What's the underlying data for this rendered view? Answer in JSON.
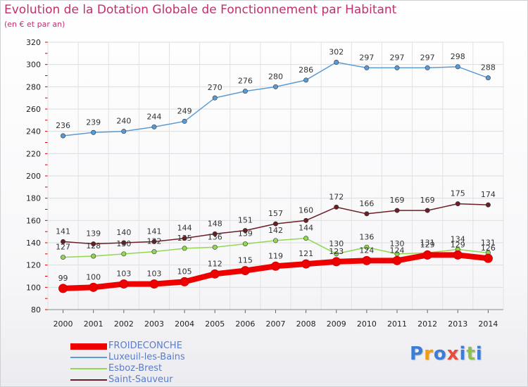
{
  "title": "Evolution de la Dotation Globale de Fonctionnement par Habitant",
  "subtitle": "(en € et par an)",
  "logo_text": "Proxiti",
  "chart_data": {
    "type": "line",
    "title": "Evolution de la Dotation Globale de Fonctionnement par Habitant",
    "subtitle": "(en € et par an)",
    "x": [
      "2000",
      "2001",
      "2002",
      "2003",
      "2004",
      "2005",
      "2006",
      "2007",
      "2008",
      "2009",
      "2010",
      "2011",
      "2012",
      "2013",
      "2014"
    ],
    "ylim": [
      80,
      320
    ],
    "yticks": [
      80,
      100,
      120,
      140,
      160,
      180,
      200,
      220,
      240,
      260,
      280,
      300,
      320
    ],
    "grid": "horizontal",
    "legend_position": "bottom-left",
    "series": [
      {
        "name": "Luxeuil-les-Bains",
        "color": "#5b9bd5",
        "values": [
          236,
          239,
          240,
          244,
          249,
          270,
          276,
          280,
          286,
          302,
          297,
          297,
          297,
          298,
          288
        ]
      },
      {
        "name": "Saint-Sauveur",
        "color": "#6b1f24",
        "values": [
          141,
          139,
          140,
          141,
          144,
          148,
          151,
          157,
          160,
          172,
          166,
          169,
          169,
          175,
          174
        ]
      },
      {
        "name": "Esboz-Brest",
        "color": "#90d850",
        "values": [
          127,
          128,
          130,
          132,
          135,
          136,
          139,
          142,
          144,
          130,
          136,
          130,
          131,
          134,
          131
        ]
      },
      {
        "name": "FROIDECONCHE",
        "color": "#ee0000",
        "values": [
          99,
          100,
          103,
          103,
          105,
          112,
          115,
          119,
          121,
          123,
          124,
          124,
          129,
          129,
          126
        ]
      }
    ],
    "legend": [
      {
        "name": "FROIDECONCHE",
        "color": "#ee0000"
      },
      {
        "name": "Luxeuil-les-Bains",
        "color": "#5b9bd5"
      },
      {
        "name": "Esboz-Brest",
        "color": "#90d850"
      },
      {
        "name": "Saint-Sauveur",
        "color": "#6b1f24"
      }
    ]
  }
}
